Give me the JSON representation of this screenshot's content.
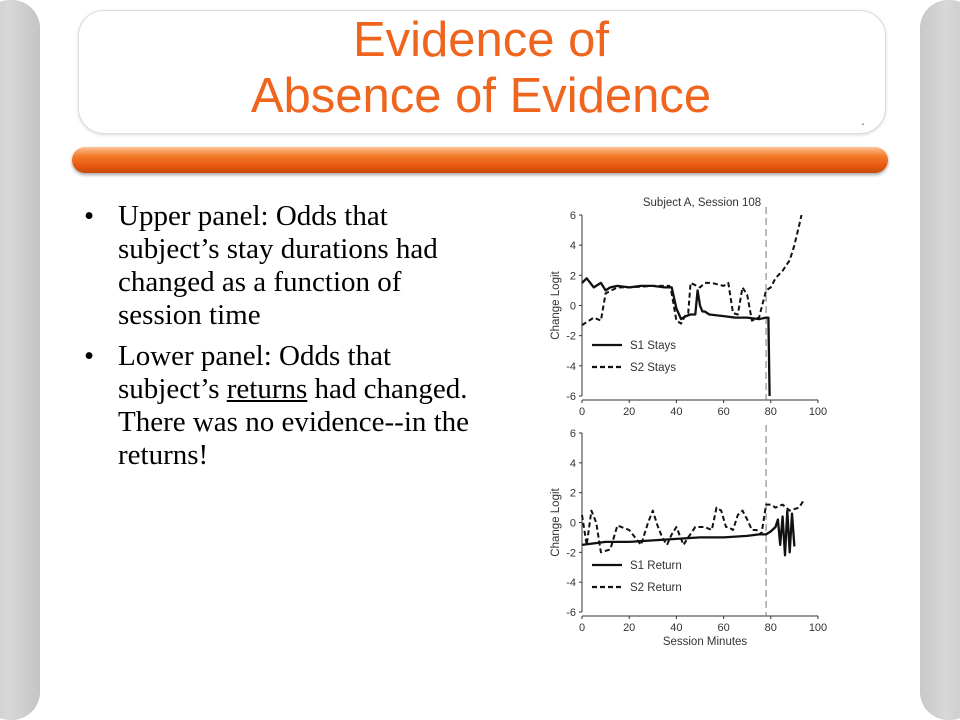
{
  "slide": {
    "title_line1": "Evidence of",
    "title_line2": "Absence of Evidence",
    "bullet_glyph": "•",
    "bullets": [
      {
        "text": "Upper panel: Odds that subject’s stay durations had changed as a function of session time"
      },
      {
        "text_before": "Lower panel: Odds that subject’s ",
        "text_underlined": "returns",
        "text_after": " had changed. There was no evidence--in the returns!"
      }
    ]
  },
  "colors": {
    "title": "#f0651e",
    "accent_bar": "#e85a10",
    "text": "#000000"
  },
  "chart_data": [
    {
      "type": "line",
      "title": "Subject A, Session 108",
      "xlabel": "",
      "ylabel": "Change Logit",
      "xlim": [
        0,
        100
      ],
      "ylim": [
        -6,
        6
      ],
      "xticks": [
        0,
        20,
        40,
        60,
        80,
        100
      ],
      "yticks": [
        6,
        4,
        2,
        0,
        -2,
        -4,
        -6
      ],
      "vline_x": 78,
      "legend_position": "bottom-left",
      "series": [
        {
          "name": "S1 Stays",
          "style": "solid",
          "x": [
            0,
            2,
            5,
            8,
            10,
            12,
            15,
            20,
            25,
            30,
            35,
            38,
            40,
            42,
            44,
            46,
            48,
            49,
            50,
            51,
            52,
            54,
            60,
            65,
            70,
            75,
            78,
            79,
            79.5
          ],
          "y": [
            1.5,
            1.8,
            1.2,
            1.5,
            1.0,
            1.2,
            1.3,
            1.2,
            1.3,
            1.3,
            1.2,
            1.2,
            -0.2,
            -0.9,
            -0.7,
            -0.6,
            -0.6,
            1.0,
            0.0,
            -0.4,
            -0.4,
            -0.6,
            -0.7,
            -0.8,
            -0.8,
            -0.9,
            -0.8,
            -0.8,
            -6.0
          ]
        },
        {
          "name": "S2 Stays",
          "style": "dashed",
          "x": [
            0,
            3,
            5,
            8,
            10,
            15,
            20,
            30,
            35,
            37,
            38,
            40,
            42,
            44,
            45,
            46,
            50,
            52,
            55,
            60,
            62,
            64,
            66,
            68,
            70,
            72,
            75,
            78,
            80,
            82,
            85,
            88,
            90,
            92,
            93
          ],
          "y": [
            -1.3,
            -1.0,
            -0.8,
            -1.0,
            0.8,
            1.2,
            1.2,
            1.3,
            1.3,
            1.3,
            0.8,
            -1.0,
            -1.2,
            -0.6,
            -0.5,
            1.5,
            1.2,
            1.5,
            1.5,
            1.3,
            1.5,
            -0.5,
            -0.6,
            1.2,
            0.7,
            -1.0,
            -0.8,
            1.0,
            1.2,
            1.8,
            2.3,
            3.0,
            4.0,
            5.3,
            6.0
          ]
        }
      ]
    },
    {
      "type": "line",
      "title": "",
      "xlabel": "Session Minutes",
      "ylabel": "Change Logit",
      "xlim": [
        0,
        100
      ],
      "ylim": [
        -6,
        6
      ],
      "xticks": [
        0,
        20,
        40,
        60,
        80,
        100
      ],
      "yticks": [
        6,
        4,
        2,
        0,
        -2,
        -4,
        -6
      ],
      "vline_x": 78,
      "legend_position": "bottom-left",
      "series": [
        {
          "name": "S1 Return",
          "style": "solid",
          "x": [
            0,
            5,
            10,
            20,
            30,
            40,
            50,
            60,
            70,
            75,
            78,
            80,
            82,
            83,
            84,
            85,
            86,
            87,
            88,
            89,
            90
          ],
          "y": [
            -1.5,
            -1.4,
            -1.3,
            -1.3,
            -1.2,
            -1.1,
            -1.0,
            -1.0,
            -0.9,
            -0.8,
            -0.8,
            -0.6,
            -0.3,
            0.2,
            -1.5,
            0.4,
            -2.2,
            0.8,
            -2.0,
            0.6,
            -1.6
          ]
        },
        {
          "name": "S2 Return",
          "style": "dashed",
          "x": [
            0,
            2,
            4,
            6,
            8,
            12,
            15,
            20,
            25,
            28,
            30,
            32,
            34,
            36,
            38,
            40,
            43,
            45,
            48,
            52,
            55,
            57,
            59,
            61,
            62,
            64,
            66,
            68,
            70,
            72,
            74,
            76,
            78,
            80,
            82,
            85,
            88,
            92,
            94
          ],
          "y": [
            0.5,
            -1.5,
            0.8,
            0.0,
            -2.0,
            -1.8,
            -0.2,
            -0.5,
            -1.5,
            0.0,
            0.8,
            -0.2,
            -1.0,
            -1.5,
            -0.8,
            -0.3,
            -1.5,
            -1.0,
            -0.3,
            -0.3,
            -0.5,
            1.0,
            0.8,
            -0.3,
            -0.3,
            -0.5,
            0.5,
            0.8,
            0.2,
            -0.5,
            -0.5,
            -0.8,
            1.2,
            1.2,
            1.0,
            1.2,
            0.8,
            1.0,
            1.5
          ]
        }
      ]
    }
  ]
}
